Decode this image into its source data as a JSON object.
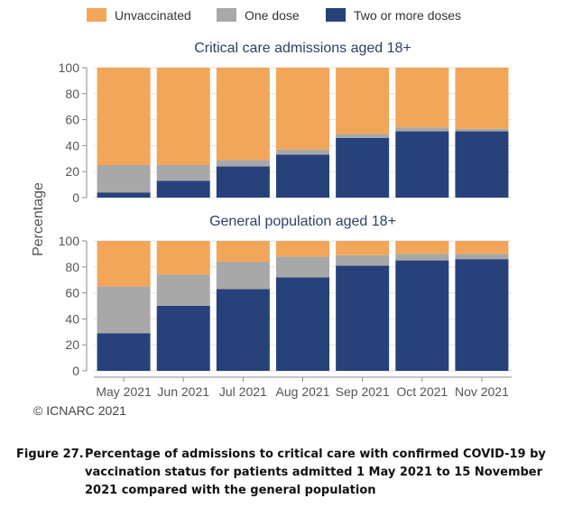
{
  "colors": {
    "unvaccinated": "#f2a65a",
    "one_dose": "#a8a8a8",
    "two_or_more": "#27417a",
    "title": "#2e3f67"
  },
  "chart_data": {
    "type": "bar",
    "stacked": true,
    "ylabel": "Percentage",
    "ylim": [
      0,
      100
    ],
    "yticks": [
      0,
      20,
      40,
      60,
      80,
      100
    ],
    "categories": [
      "May 2021",
      "Jun 2021",
      "Jul 2021",
      "Aug 2021",
      "Sep 2021",
      "Oct 2021",
      "Nov 2021"
    ],
    "legend": {
      "placement": "top",
      "entries": [
        "Unvaccinated",
        "One dose",
        "Two or more doses"
      ]
    },
    "panels": [
      {
        "title": "Critical care admissions aged 18+",
        "series": [
          {
            "name": "Two or more doses",
            "values": [
              4,
              13,
              24,
              33,
              46,
              51,
              51
            ]
          },
          {
            "name": "One dose",
            "values": [
              21,
              12,
              5,
              4,
              3,
              3,
              2
            ]
          },
          {
            "name": "Unvaccinated",
            "values": [
              75,
              75,
              71,
              63,
              51,
              46,
              47
            ]
          }
        ]
      },
      {
        "title": "General population aged 18+",
        "series": [
          {
            "name": "Two or more doses",
            "values": [
              29,
              50,
              63,
              72,
              81,
              85,
              86
            ]
          },
          {
            "name": "One dose",
            "values": [
              36,
              24,
              21,
              16,
              8,
              5,
              4
            ]
          },
          {
            "name": "Unvaccinated",
            "values": [
              35,
              26,
              16,
              12,
              11,
              10,
              10
            ]
          }
        ]
      }
    ]
  },
  "copyright": "© ICNARC 2021",
  "caption": {
    "label": "Figure 27.",
    "text": "Percentage of admissions to critical care with confirmed COVID-19 by vaccination status for patients admitted 1 May 2021 to 15 November 2021 compared with the general population"
  }
}
